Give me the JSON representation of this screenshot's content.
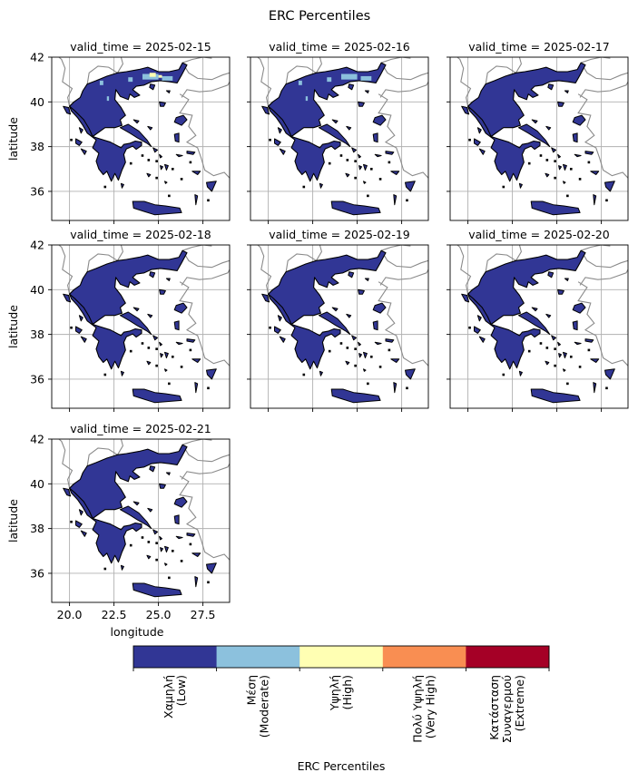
{
  "figure": {
    "title": "ERC Percentiles",
    "ylabel": "latitude",
    "xlabel": "longitude",
    "xticks": [
      "20.0",
      "22.5",
      "25.0",
      "27.5"
    ],
    "yticks": [
      "36",
      "38",
      "40",
      "42"
    ]
  },
  "chart_data": {
    "type": "map",
    "map_layers": [
      "greece-land-fill",
      "coastline-outline",
      "neighbor-borders",
      "gridlines"
    ],
    "colors": {
      "low": "#313695",
      "moderate": "#8cc1dd",
      "high": "#ffffb3",
      "very_high": "#f98e52",
      "extreme": "#a50026",
      "border": "#8a8a8a",
      "grid": "#b0b0b0"
    },
    "xlim": [
      19.0,
      29.0
    ],
    "ylim": [
      34.7,
      42.0
    ],
    "grid": true,
    "panels": [
      {
        "label": "valid_time = 2025-02-15",
        "highlights": [
          "moderate",
          "high"
        ]
      },
      {
        "label": "valid_time = 2025-02-16",
        "highlights": [
          "moderate"
        ]
      },
      {
        "label": "valid_time = 2025-02-17",
        "highlights": []
      },
      {
        "label": "valid_time = 2025-02-18",
        "highlights": []
      },
      {
        "label": "valid_time = 2025-02-19",
        "highlights": []
      },
      {
        "label": "valid_time = 2025-02-20",
        "highlights": []
      },
      {
        "label": "valid_time = 2025-02-21",
        "highlights": []
      }
    ]
  },
  "colorbar": {
    "label": "ERC Percentiles",
    "categories": [
      {
        "lines": [
          "Χαμηλή",
          "(Low)"
        ],
        "color": "#313695"
      },
      {
        "lines": [
          "Μέση",
          "(Moderate)"
        ],
        "color": "#8cc1dd"
      },
      {
        "lines": [
          "Υψηλή",
          "(High)"
        ],
        "color": "#ffffb3"
      },
      {
        "lines": [
          "Πολύ Υψηλή",
          "(Very High)"
        ],
        "color": "#f98e52"
      },
      {
        "lines": [
          "Κατάσταση",
          "Συναγερμού",
          "(Extreme)"
        ],
        "color": "#a50026"
      }
    ]
  }
}
